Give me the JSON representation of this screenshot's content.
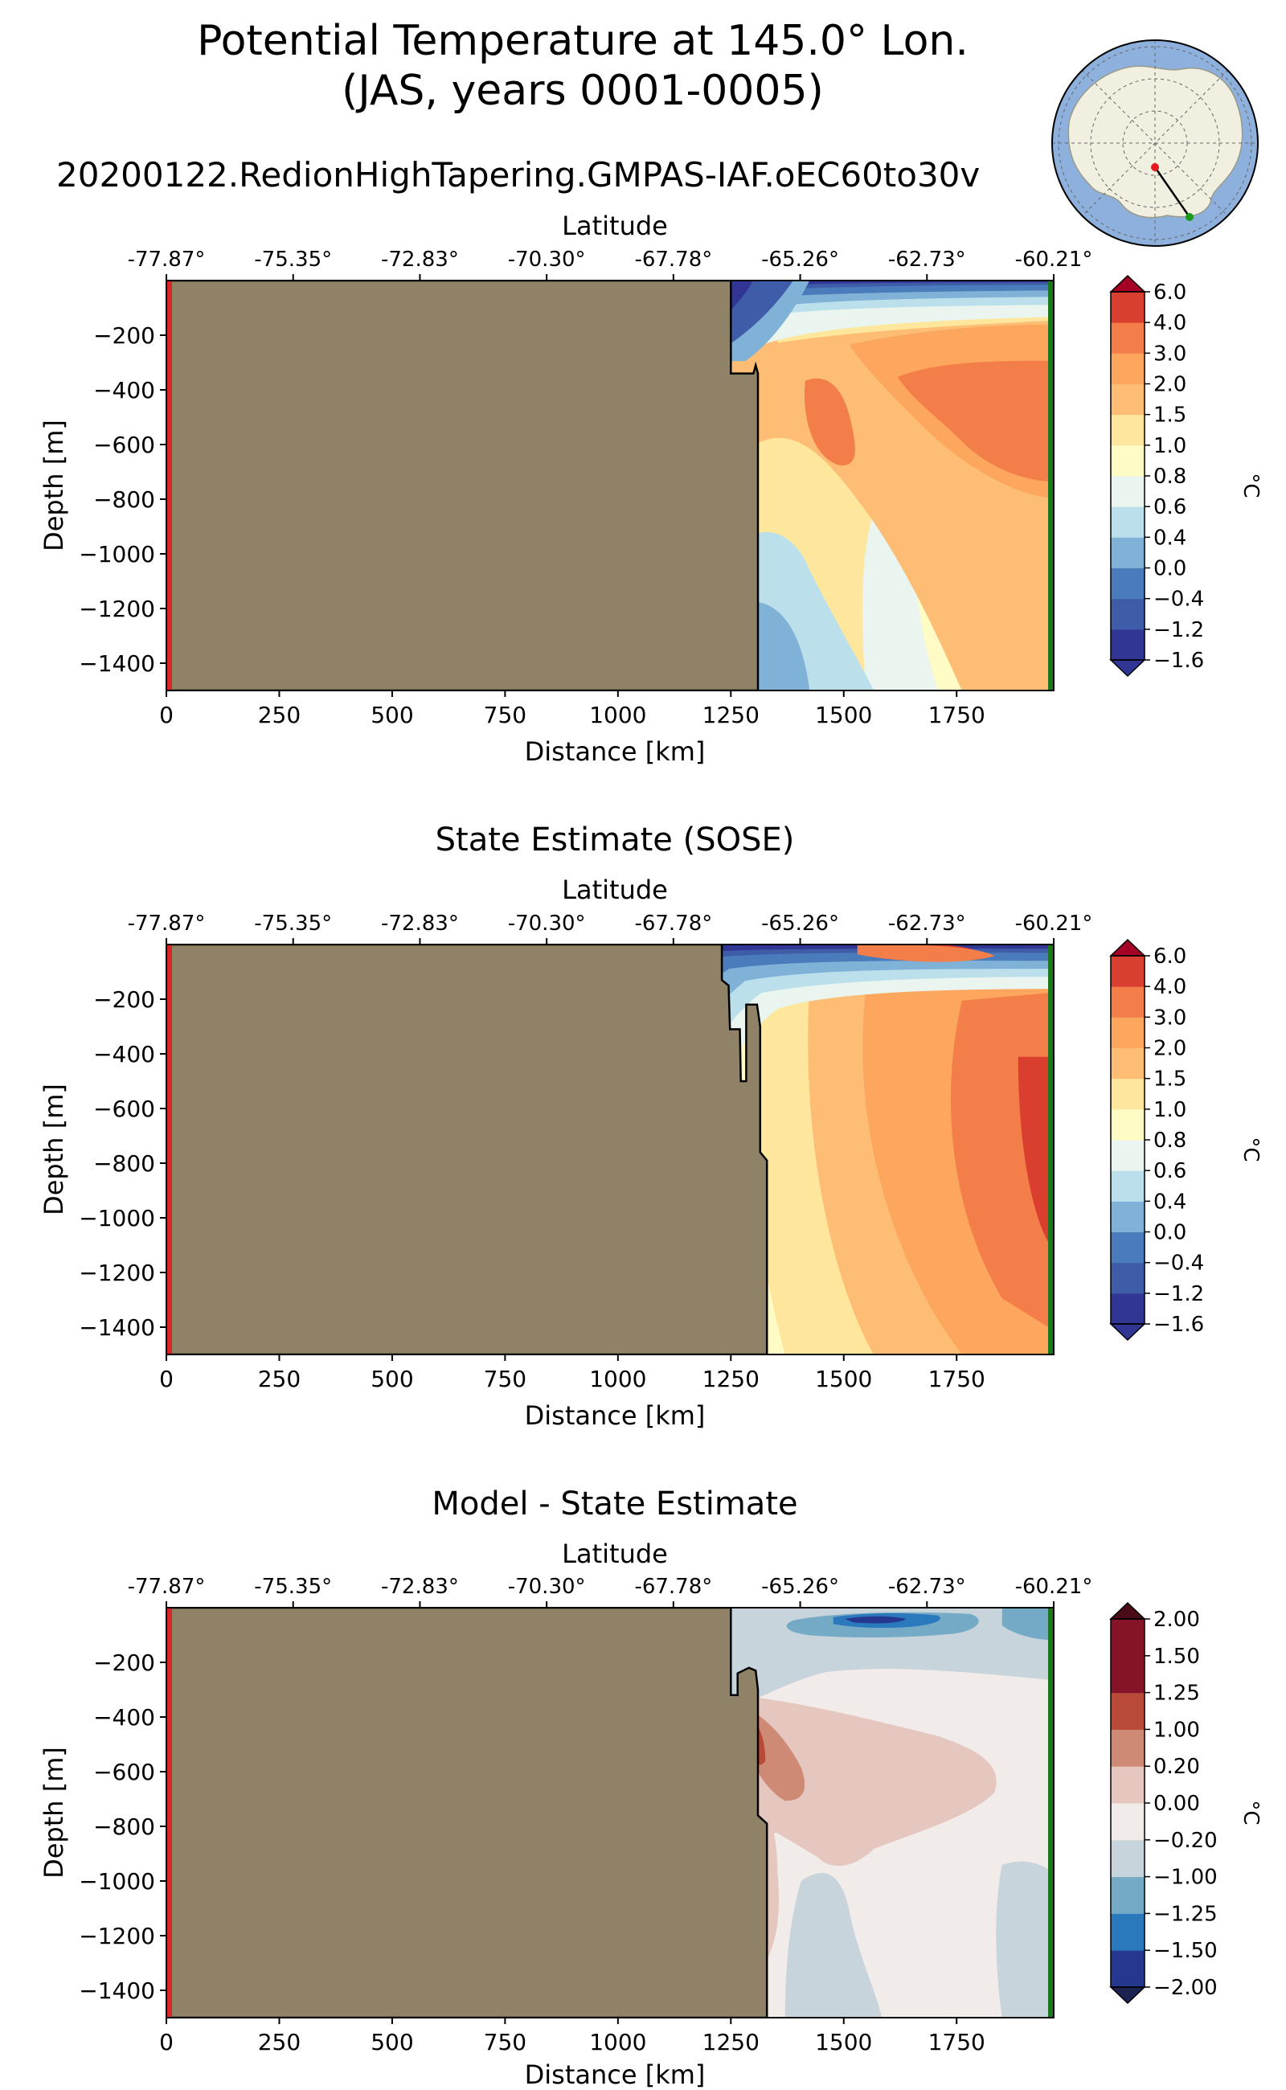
{
  "figure": {
    "title_line1": "Potential Temperature at 145.0° Lon.",
    "title_line2": "(JAS, years 0001-0005)",
    "run_name": "20200122.RedionHighTapering.GMPAS-IAF.oEC60to30v"
  },
  "colors": {
    "land": "#8f8266",
    "start_marker": "#d62728",
    "end_marker": "#1a7a1a",
    "map_ocean": "#8eb0dd",
    "map_land": "#f0efe0"
  },
  "chart_data": [
    {
      "id": "model",
      "type": "contourf",
      "title": "",
      "top_axis_label": "Latitude",
      "latitude_ticks": [
        "-77.87°",
        "-75.35°",
        "-72.83°",
        "-70.30°",
        "-67.78°",
        "-65.26°",
        "-62.73°",
        "-60.21°"
      ],
      "xlabel": "Distance [km]",
      "ylabel": "Depth [m]",
      "x_ticks": [
        0,
        250,
        500,
        750,
        1000,
        1250,
        1500,
        1750
      ],
      "y_ticks": [
        -200,
        -400,
        -600,
        -800,
        -1000,
        -1200,
        -1400
      ],
      "xlim": [
        0,
        1965
      ],
      "ylim": [
        -1500,
        0
      ],
      "colorbar": {
        "unit": "°C",
        "levels": [
          "-1.6",
          "-1.2",
          "-0.4",
          "0.0",
          "0.4",
          "0.6",
          "0.8",
          "1.0",
          "1.5",
          "2.0",
          "3.0",
          "4.0",
          "6.0"
        ],
        "colors": [
          "#313695",
          "#3f5ca8",
          "#4a7cbb",
          "#7fb2d6",
          "#bcdfec",
          "#e9f5ee",
          "#fefbc5",
          "#fee79d",
          "#fdbd74",
          "#fca65e",
          "#f47e4a",
          "#da3e2f",
          "#b71c28"
        ],
        "extend_low": "#313695",
        "extend_high": "#a50026"
      },
      "ice_shelf_edge_km": 1250,
      "bathymetry": [
        [
          1250,
          0
        ],
        [
          1250,
          -340
        ],
        [
          1300,
          -340
        ],
        [
          1305,
          -310
        ],
        [
          1310,
          -340
        ],
        [
          1310,
          -1500
        ]
      ]
    },
    {
      "id": "sose",
      "type": "contourf",
      "title": "State Estimate (SOSE)",
      "top_axis_label": "Latitude",
      "latitude_ticks": [
        "-77.87°",
        "-75.35°",
        "-72.83°",
        "-70.30°",
        "-67.78°",
        "-65.26°",
        "-62.73°",
        "-60.21°"
      ],
      "xlabel": "Distance [km]",
      "ylabel": "Depth [m]",
      "x_ticks": [
        0,
        250,
        500,
        750,
        1000,
        1250,
        1500,
        1750
      ],
      "y_ticks": [
        -200,
        -400,
        -600,
        -800,
        -1000,
        -1200,
        -1400
      ],
      "xlim": [
        0,
        1965
      ],
      "ylim": [
        -1500,
        0
      ],
      "colorbar": {
        "unit": "°C",
        "levels": [
          "-1.6",
          "-1.2",
          "-0.4",
          "0.0",
          "0.4",
          "0.6",
          "0.8",
          "1.0",
          "1.5",
          "2.0",
          "3.0",
          "4.0",
          "6.0"
        ],
        "colors": [
          "#313695",
          "#3f5ca8",
          "#4a7cbb",
          "#7fb2d6",
          "#bcdfec",
          "#e9f5ee",
          "#fefbc5",
          "#fee79d",
          "#fdbd74",
          "#fca65e",
          "#f47e4a",
          "#da3e2f",
          "#b71c28"
        ],
        "extend_low": "#313695",
        "extend_high": "#a50026"
      },
      "ice_shelf_edge_km": 1230,
      "bathymetry": [
        [
          1230,
          0
        ],
        [
          1230,
          -130
        ],
        [
          1245,
          -150
        ],
        [
          1248,
          -310
        ],
        [
          1270,
          -310
        ],
        [
          1272,
          -500
        ],
        [
          1284,
          -500
        ],
        [
          1284,
          -220
        ],
        [
          1308,
          -220
        ],
        [
          1315,
          -300
        ],
        [
          1315,
          -760
        ],
        [
          1330,
          -790
        ],
        [
          1330,
          -1500
        ]
      ]
    },
    {
      "id": "diff",
      "type": "contourf",
      "title": "Model - State Estimate",
      "top_axis_label": "Latitude",
      "latitude_ticks": [
        "-77.87°",
        "-75.35°",
        "-72.83°",
        "-70.30°",
        "-67.78°",
        "-65.26°",
        "-62.73°",
        "-60.21°"
      ],
      "xlabel": "Distance [km]",
      "ylabel": "Depth [m]",
      "x_ticks": [
        0,
        250,
        500,
        750,
        1000,
        1250,
        1500,
        1750
      ],
      "y_ticks": [
        -200,
        -400,
        -600,
        -800,
        -1000,
        -1200,
        -1400
      ],
      "xlim": [
        0,
        1965
      ],
      "ylim": [
        -1500,
        0
      ],
      "colorbar": {
        "unit": "°C",
        "levels": [
          "-2.00",
          "-1.50",
          "-1.25",
          "-1.00",
          "-0.20",
          "0.00",
          "0.20",
          "1.00",
          "1.25",
          "1.50",
          "2.00"
        ],
        "colors": [
          "#26378f",
          "#2a79bd",
          "#75aac6",
          "#c8d4dc",
          "#f1ecea",
          "#e6c7bf",
          "#cf8a76",
          "#b84a37",
          "#851428",
          "#851428"
        ],
        "extend_low": "#1c2350",
        "extend_high": "#4a0c17"
      },
      "ice_shelf_edge_km": 1250,
      "bathymetry": [
        [
          1250,
          0
        ],
        [
          1250,
          -320
        ],
        [
          1265,
          -320
        ],
        [
          1265,
          -240
        ],
        [
          1290,
          -220
        ],
        [
          1305,
          -230
        ],
        [
          1310,
          -300
        ],
        [
          1310,
          -760
        ],
        [
          1330,
          -790
        ],
        [
          1330,
          -1500
        ]
      ]
    }
  ]
}
